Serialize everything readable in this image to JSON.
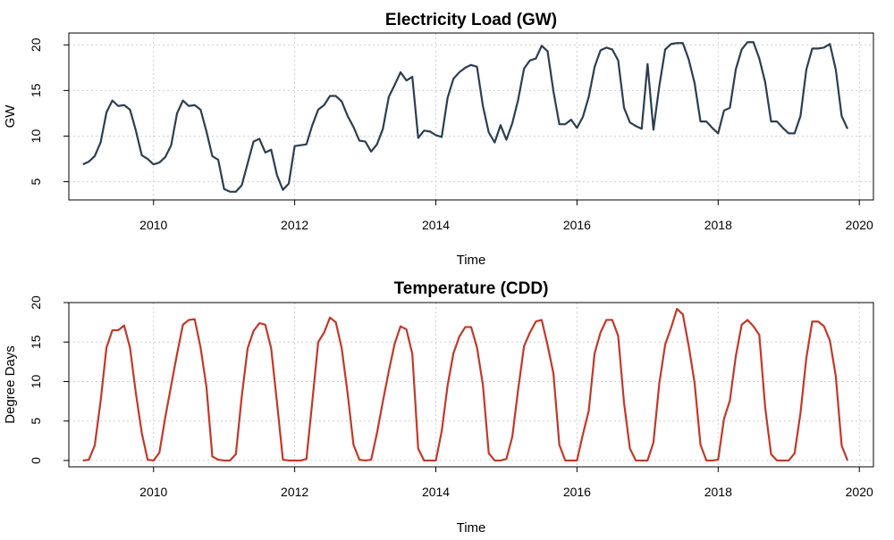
{
  "chart_data": [
    {
      "type": "line",
      "title": "Electricity Load (GW)",
      "xlabel": "Time",
      "ylabel": "GW",
      "xlim": [
        2008.8,
        2020.2
      ],
      "ylim": [
        3.0,
        21.3
      ],
      "x_ticks": [
        2010,
        2012,
        2014,
        2016,
        2018,
        2020
      ],
      "x_tick_labels": [
        "2010",
        "2012",
        "2014",
        "2016",
        "2018",
        "2020"
      ],
      "y_ticks": [
        5,
        10,
        15,
        20
      ],
      "y_tick_labels": [
        "5",
        "10",
        "15",
        "20"
      ],
      "grid": true,
      "color": "#2c3e50",
      "x_start": 2009.0,
      "x_step": 0.08333,
      "values": [
        6.9,
        7.2,
        7.8,
        9.3,
        12.6,
        13.9,
        13.3,
        13.4,
        12.9,
        10.6,
        7.9,
        7.5,
        6.9,
        7.1,
        7.7,
        9.0,
        12.5,
        13.9,
        13.3,
        13.4,
        12.9,
        10.5,
        7.8,
        7.4,
        4.2,
        3.9,
        3.9,
        4.6,
        7.0,
        9.4,
        9.7,
        8.2,
        8.5,
        5.7,
        4.1,
        4.8,
        8.9,
        9.0,
        9.1,
        11.2,
        12.9,
        13.4,
        14.4,
        14.4,
        13.8,
        12.2,
        11.0,
        9.5,
        9.4,
        8.3,
        9.1,
        10.8,
        14.3,
        15.6,
        17.0,
        16.1,
        16.5,
        9.8,
        10.6,
        10.5,
        10.1,
        9.9,
        14.2,
        16.3,
        17.0,
        17.5,
        17.8,
        17.6,
        13.3,
        10.4,
        9.3,
        11.2,
        9.6,
        11.4,
        14.0,
        17.4,
        18.3,
        18.5,
        19.9,
        19.3,
        14.9,
        11.3,
        11.3,
        11.8,
        10.9,
        12.1,
        14.3,
        17.6,
        19.4,
        19.7,
        19.5,
        18.3,
        13.1,
        11.5,
        11.1,
        10.8,
        17.9,
        10.7,
        15.5,
        19.5,
        20.1,
        20.2,
        20.2,
        18.4,
        15.8,
        11.6,
        11.6,
        10.9,
        10.3,
        12.8,
        13.1,
        17.3,
        19.5,
        20.3,
        20.3,
        18.5,
        15.9,
        11.6,
        11.6,
        10.9,
        10.3,
        10.3,
        12.2,
        17.3,
        19.6,
        19.6,
        19.7,
        20.1,
        17.3,
        12.2,
        10.8
      ]
    },
    {
      "type": "line",
      "title": "Temperature (CDD)",
      "xlabel": "Time",
      "ylabel": "Degree Days",
      "xlim": [
        2008.8,
        2020.2
      ],
      "ylim": [
        -0.8,
        20.0
      ],
      "x_ticks": [
        2010,
        2012,
        2014,
        2016,
        2018,
        2020
      ],
      "x_tick_labels": [
        "2010",
        "2012",
        "2014",
        "2016",
        "2018",
        "2020"
      ],
      "y_ticks": [
        0,
        5,
        10,
        15,
        20
      ],
      "y_tick_labels": [
        "0",
        "5",
        "10",
        "15",
        "20"
      ],
      "grid": true,
      "color": "#c0392b",
      "x_start": 2009.0,
      "x_step": 0.08333,
      "values": [
        0.0,
        0.1,
        1.9,
        7.5,
        14.3,
        16.5,
        16.5,
        17.1,
        14.3,
        8.5,
        3.5,
        0.1,
        0.0,
        1.0,
        5.5,
        9.5,
        13.5,
        17.2,
        17.8,
        17.9,
        14.3,
        9.3,
        0.5,
        0.1,
        0.0,
        0.0,
        0.8,
        8.1,
        14.2,
        16.4,
        17.4,
        17.2,
        14.2,
        7.3,
        0.1,
        0.0,
        0.0,
        0.0,
        0.2,
        7.5,
        15.0,
        16.2,
        18.1,
        17.5,
        14.2,
        8.5,
        2.0,
        0.1,
        0.0,
        0.1,
        3.5,
        7.5,
        11.3,
        14.8,
        17.0,
        16.6,
        13.5,
        1.5,
        0.0,
        0.0,
        0.0,
        3.7,
        9.5,
        13.6,
        15.7,
        16.9,
        16.9,
        14.3,
        9.6,
        0.9,
        0.0,
        0.0,
        0.2,
        3.0,
        9.0,
        14.5,
        16.2,
        17.6,
        17.8,
        14.6,
        11.0,
        2.0,
        0.0,
        0.0,
        0.0,
        3.3,
        6.3,
        13.6,
        16.2,
        17.8,
        17.8,
        15.8,
        7.3,
        1.5,
        0.0,
        0.0,
        0.0,
        2.3,
        9.8,
        14.7,
        16.8,
        19.2,
        18.5,
        14.5,
        9.8,
        2.0,
        0.0,
        0.0,
        0.1,
        5.3,
        7.6,
        13.2,
        17.2,
        17.8,
        17.0,
        15.9,
        6.7,
        0.8,
        0.0,
        0.0,
        0.0,
        0.9,
        6.0,
        13.0,
        17.6,
        17.6,
        17.0,
        15.2,
        10.7,
        1.9,
        0.0
      ]
    }
  ]
}
